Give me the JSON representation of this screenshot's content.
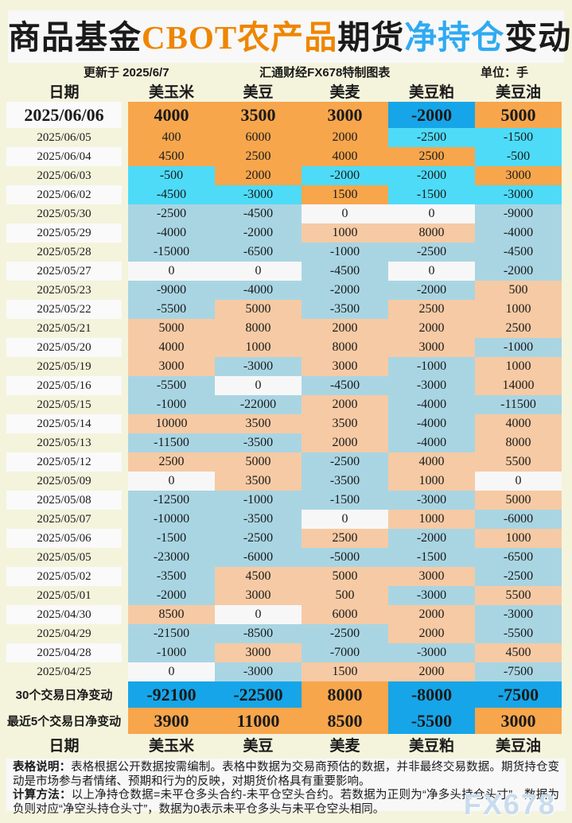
{
  "title": {
    "segments": [
      {
        "text": "商品基金",
        "color": "#1A1A1A"
      },
      {
        "text": "CBOT农产品",
        "color": "#EE8600"
      },
      {
        "text": "期货",
        "color": "#1A1A1A"
      },
      {
        "text": "净持仓",
        "color": "#2FAAF2"
      },
      {
        "text": "变动",
        "color": "#1A1A1A"
      }
    ]
  },
  "meta": {
    "updated": "更新于 2025/6/7",
    "source": "汇通财经FX678特制图表",
    "unit": "单位：手"
  },
  "chart_data": {
    "type": "table",
    "title": "商品基金CBOT农产品期货净持仓变动",
    "unit": "手",
    "columns": [
      "日期",
      "美玉米",
      "美豆",
      "美麦",
      "美豆粕",
      "美豆油"
    ],
    "recent_days": 5,
    "rows": [
      {
        "date": "2025/06/06",
        "values": [
          4000,
          3500,
          3000,
          -2000,
          5000
        ]
      },
      {
        "date": "2025/06/05",
        "values": [
          400,
          6000,
          2000,
          -2500,
          -1500
        ]
      },
      {
        "date": "2025/06/04",
        "values": [
          4500,
          2500,
          4000,
          2500,
          -500
        ]
      },
      {
        "date": "2025/06/03",
        "values": [
          -500,
          2000,
          -2000,
          -2000,
          3000
        ]
      },
      {
        "date": "2025/06/02",
        "values": [
          -4500,
          -3000,
          1500,
          -1500,
          -3000
        ]
      },
      {
        "date": "2025/05/30",
        "values": [
          -2500,
          -4500,
          0,
          0,
          -9000
        ]
      },
      {
        "date": "2025/05/29",
        "values": [
          -4000,
          -2000,
          1000,
          8000,
          -4000
        ]
      },
      {
        "date": "2025/05/28",
        "values": [
          -15000,
          -6500,
          -1000,
          -2500,
          -4500
        ]
      },
      {
        "date": "2025/05/27",
        "values": [
          0,
          0,
          -4500,
          0,
          -2000
        ]
      },
      {
        "date": "2025/05/23",
        "values": [
          -9000,
          -4000,
          -2000,
          -2000,
          500
        ]
      },
      {
        "date": "2025/05/22",
        "values": [
          -5500,
          5000,
          -3500,
          2500,
          1000
        ]
      },
      {
        "date": "2025/05/21",
        "values": [
          5000,
          8000,
          2000,
          2000,
          2500
        ]
      },
      {
        "date": "2025/05/20",
        "values": [
          4000,
          1000,
          8000,
          3000,
          -1000
        ]
      },
      {
        "date": "2025/05/19",
        "values": [
          3000,
          -3000,
          3000,
          -1000,
          1000
        ]
      },
      {
        "date": "2025/05/16",
        "values": [
          -5500,
          0,
          -4500,
          -3000,
          14000
        ]
      },
      {
        "date": "2025/05/15",
        "values": [
          -1000,
          -22000,
          2000,
          -4000,
          -11500
        ]
      },
      {
        "date": "2025/05/14",
        "values": [
          10000,
          3500,
          3500,
          -4000,
          4000
        ]
      },
      {
        "date": "2025/05/13",
        "values": [
          -11500,
          -3500,
          2000,
          -4000,
          8000
        ]
      },
      {
        "date": "2025/05/12",
        "values": [
          2500,
          5000,
          -2500,
          4000,
          5500
        ]
      },
      {
        "date": "2025/05/09",
        "values": [
          0,
          3500,
          -3500,
          1000,
          0
        ]
      },
      {
        "date": "2025/05/08",
        "values": [
          -12500,
          -1000,
          -1500,
          -3000,
          5000
        ]
      },
      {
        "date": "2025/05/07",
        "values": [
          -10000,
          -3500,
          0,
          1000,
          -6000
        ]
      },
      {
        "date": "2025/05/06",
        "values": [
          -1500,
          -2500,
          2500,
          -2000,
          1000
        ]
      },
      {
        "date": "2025/05/05",
        "values": [
          -23000,
          -6000,
          -5000,
          -1500,
          -6500
        ]
      },
      {
        "date": "2025/05/02",
        "values": [
          -3500,
          4500,
          5000,
          3000,
          -2500
        ]
      },
      {
        "date": "2025/05/01",
        "values": [
          -2000,
          3000,
          500,
          -3000,
          5500
        ]
      },
      {
        "date": "2025/04/30",
        "values": [
          8500,
          0,
          6000,
          2000,
          -3000
        ]
      },
      {
        "date": "2025/04/29",
        "values": [
          -21500,
          -8500,
          -2500,
          2000,
          -5500
        ]
      },
      {
        "date": "2025/04/28",
        "values": [
          -1000,
          3000,
          -7000,
          -3000,
          4500
        ]
      },
      {
        "date": "2025/04/25",
        "values": [
          0,
          -3000,
          1500,
          2000,
          -7500
        ]
      }
    ],
    "summary_rows": [
      {
        "label": "30个交易日净变动",
        "values": [
          -92100,
          -22500,
          8000,
          -8000,
          -7500
        ]
      },
      {
        "label": "最近5个交易日净变动",
        "values": [
          3900,
          11000,
          8500,
          -5500,
          3000
        ]
      }
    ]
  },
  "notes": [
    {
      "label": "表格说明：",
      "text": "表格根据公开数据按需编制。表格中数据为交易商预估的数据，并非最终交易数据。期货持仓变动是市场参与者情绪、预期和行为的反映，对期货价格具有重要影响。"
    },
    {
      "label": "计算方法：",
      "text": "以上净持仓数据=未平仓多头合约-未平仓空头合约。若数据为正则为“净多头持仓头寸”，数据为负则对应“净空头持仓头寸”，数据为0表示未平仓多头与未平仓空头相同。"
    }
  ],
  "watermark": "FX678",
  "colors": {
    "page_bg": "#F4F4DD",
    "panel_bg": "#F8F8F8",
    "bright_orange": "#F7A64C",
    "bright_cyan": "#4EDBF8",
    "bright_blue": "#16A5E8",
    "peach": "#F6CAA4",
    "light_blue": "#A9D5E3",
    "zero_bg": "#F7F7F7",
    "date_stripe": "#FAFAFA",
    "watermark_color": "#C8DCEE"
  }
}
